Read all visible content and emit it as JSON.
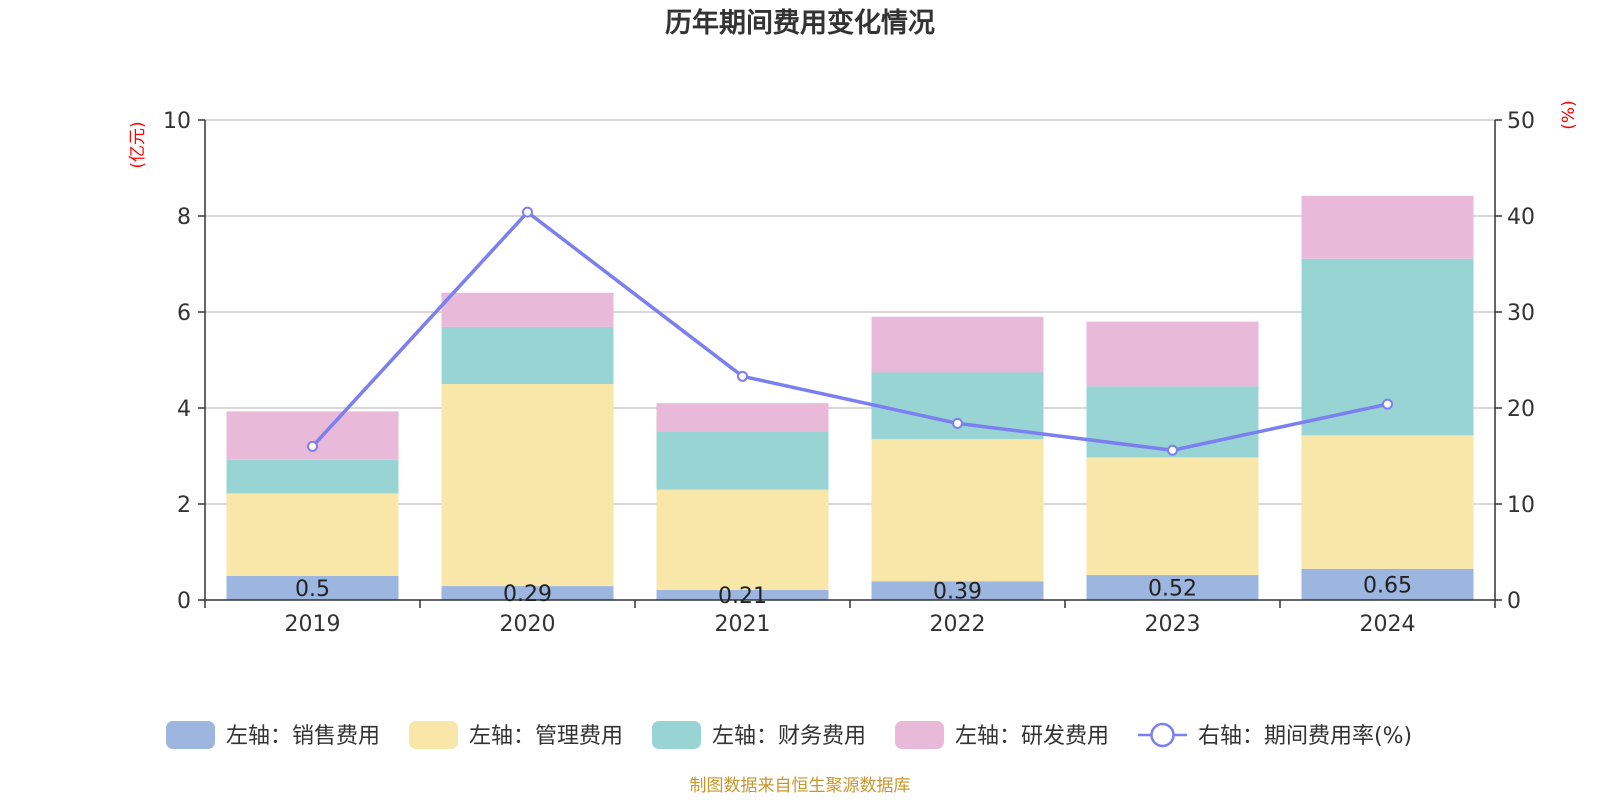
{
  "chart_data": {
    "type": "bar",
    "title": "历年期间费用变化情况",
    "categories": [
      "2019",
      "2020",
      "2021",
      "2022",
      "2023",
      "2024"
    ],
    "y_left": {
      "unit_label": "(亿元)",
      "ylim": [
        0,
        10
      ],
      "ticks": [
        "0",
        "2",
        "4",
        "6",
        "8",
        "10"
      ]
    },
    "y_right": {
      "unit_label": "(%)",
      "ylim": [
        0,
        50
      ],
      "ticks": [
        "0",
        "10",
        "20",
        "30",
        "40",
        "50"
      ]
    },
    "stacked": true,
    "grid": true,
    "legend_position": "bottom",
    "series": [
      {
        "name": "左轴：销售费用",
        "type": "bar",
        "axis": "left",
        "color": "#9db6e0",
        "values": [
          0.5,
          0.29,
          0.21,
          0.39,
          0.52,
          0.65
        ],
        "labels": [
          "0.5",
          "0.29",
          "0.21",
          "0.39",
          "0.52",
          "0.65"
        ]
      },
      {
        "name": "左轴：管理费用",
        "type": "bar",
        "axis": "left",
        "color": "#f8e7a8",
        "values": [
          1.72,
          4.21,
          2.09,
          2.96,
          2.45,
          2.78
        ]
      },
      {
        "name": "左轴：财务费用",
        "type": "bar",
        "axis": "left",
        "color": "#98d4d4",
        "values": [
          0.7,
          1.19,
          1.2,
          1.39,
          1.48,
          3.68
        ]
      },
      {
        "name": "左轴：研发费用",
        "type": "bar",
        "axis": "left",
        "color": "#e8b9d9",
        "values": [
          1.01,
          0.71,
          0.6,
          1.16,
          1.35,
          1.31
        ]
      },
      {
        "name": "右轴：期间费用率(%)",
        "type": "line",
        "axis": "right",
        "color": "#7b7ff0",
        "values": [
          16.0,
          40.4,
          23.3,
          18.4,
          15.6,
          20.4
        ]
      }
    ],
    "source": "制图数据来自恒生聚源数据库"
  }
}
